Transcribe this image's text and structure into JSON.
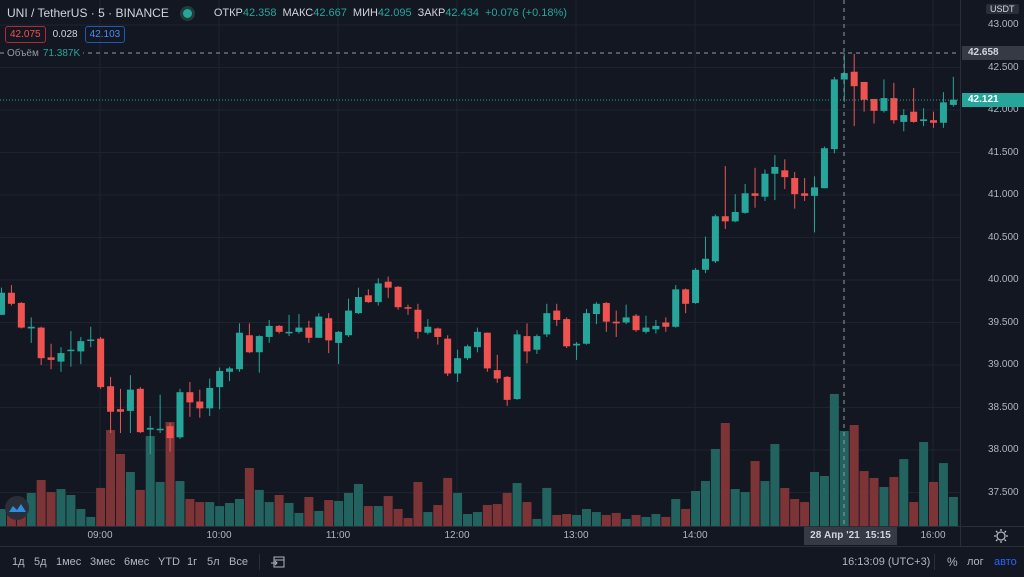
{
  "header": {
    "symbol": "UNI / TetherUS · 5 · BINANCE",
    "open_label": "ОТКР",
    "open": "42.358",
    "high_label": "МАКС",
    "high": "42.667",
    "low_label": "МИН",
    "low": "42.095",
    "close_label": "ЗАКР",
    "close": "42.434",
    "change": "+0.076 (+0.18%)",
    "sell_price": "42.075",
    "spread": "0.028",
    "buy_price": "42.103",
    "volume_label": "Объём",
    "volume": "71.387K"
  },
  "price_axis": {
    "currency": "USDT",
    "ticks": [
      "43.000",
      "42.500",
      "42.000",
      "41.500",
      "41.000",
      "40.500",
      "40.000",
      "39.500",
      "39.000",
      "38.500",
      "38.000",
      "37.500"
    ],
    "crosshair_price": "42.658",
    "current_price": "42.121"
  },
  "time_axis": {
    "ticks": [
      "09:00",
      "10:00",
      "11:00",
      "12:00",
      "13:00",
      "14:00",
      "16:00"
    ],
    "crosshair_date": "28 Апр '21",
    "crosshair_time": "15:15"
  },
  "bottom_bar": {
    "ranges": [
      "1д",
      "5д",
      "1мес",
      "3мес",
      "6мес",
      "YTD",
      "1г",
      "5л",
      "Все"
    ],
    "clock": "16:13:09 (UTC+3)",
    "percent": "%",
    "log": "лог",
    "auto": "авто"
  },
  "colors": {
    "up": "#26a69a",
    "down": "#ef5350",
    "vol_up": "#22625f",
    "vol_down": "#7d3436",
    "bg": "#131722"
  },
  "chart_data": {
    "type": "candlestick",
    "interval": "5m",
    "ylim": [
      37.2,
      43.3
    ],
    "ohlc": [
      [
        39.59,
        39.91,
        39.59,
        39.85
      ],
      [
        39.85,
        39.94,
        39.7,
        39.72
      ],
      [
        39.73,
        39.74,
        39.43,
        39.44
      ],
      [
        39.43,
        39.56,
        39.26,
        39.45
      ],
      [
        39.44,
        39.45,
        39.0,
        39.08
      ],
      [
        39.09,
        39.25,
        38.95,
        39.06
      ],
      [
        39.04,
        39.21,
        38.92,
        39.14
      ],
      [
        39.17,
        39.4,
        38.98,
        39.18
      ],
      [
        39.16,
        39.33,
        39.01,
        39.28
      ],
      [
        39.29,
        39.45,
        39.21,
        39.3
      ],
      [
        39.31,
        39.33,
        38.72,
        38.74
      ],
      [
        38.75,
        38.86,
        38.2,
        38.45
      ],
      [
        38.48,
        38.72,
        38.2,
        38.45
      ],
      [
        38.46,
        38.88,
        38.2,
        38.71
      ],
      [
        38.72,
        38.74,
        38.2,
        38.21
      ],
      [
        38.24,
        38.4,
        37.95,
        38.26
      ],
      [
        38.24,
        38.65,
        38.2,
        38.25
      ],
      [
        38.28,
        38.32,
        37.98,
        38.14
      ],
      [
        38.15,
        38.72,
        38.13,
        38.68
      ],
      [
        38.68,
        38.8,
        38.39,
        38.56
      ],
      [
        38.57,
        38.71,
        38.38,
        38.49
      ],
      [
        38.49,
        38.84,
        38.4,
        38.73
      ],
      [
        38.74,
        38.97,
        38.48,
        38.93
      ],
      [
        38.92,
        38.98,
        38.81,
        38.96
      ],
      [
        38.95,
        39.49,
        38.92,
        39.38
      ],
      [
        39.35,
        39.49,
        39.14,
        39.15
      ],
      [
        39.15,
        39.35,
        38.91,
        39.34
      ],
      [
        39.33,
        39.53,
        39.26,
        39.46
      ],
      [
        39.46,
        39.47,
        39.37,
        39.39
      ],
      [
        39.38,
        39.59,
        39.34,
        39.39
      ],
      [
        39.39,
        39.6,
        39.37,
        39.44
      ],
      [
        39.44,
        39.52,
        39.26,
        39.32
      ],
      [
        39.32,
        39.61,
        39.32,
        39.57
      ],
      [
        39.55,
        39.61,
        39.14,
        39.29
      ],
      [
        39.26,
        39.4,
        39.01,
        39.39
      ],
      [
        39.35,
        39.78,
        39.33,
        39.64
      ],
      [
        39.61,
        39.91,
        39.6,
        39.8
      ],
      [
        39.82,
        39.89,
        39.73,
        39.74
      ],
      [
        39.74,
        40.02,
        39.7,
        39.96
      ],
      [
        39.98,
        40.04,
        39.79,
        39.91
      ],
      [
        39.92,
        39.93,
        39.65,
        39.68
      ],
      [
        39.68,
        39.71,
        39.59,
        39.67
      ],
      [
        39.65,
        39.72,
        39.31,
        39.39
      ],
      [
        39.38,
        39.54,
        39.36,
        39.45
      ],
      [
        39.43,
        39.44,
        39.24,
        39.33
      ],
      [
        39.31,
        39.35,
        38.87,
        38.9
      ],
      [
        38.9,
        39.18,
        38.8,
        39.08
      ],
      [
        39.08,
        39.24,
        39.06,
        39.22
      ],
      [
        39.21,
        39.44,
        39.15,
        39.39
      ],
      [
        39.38,
        39.38,
        38.92,
        38.96
      ],
      [
        38.94,
        39.12,
        38.79,
        38.84
      ],
      [
        38.86,
        38.87,
        38.52,
        38.59
      ],
      [
        38.6,
        39.41,
        38.59,
        39.36
      ],
      [
        39.34,
        39.49,
        39.02,
        39.16
      ],
      [
        39.18,
        39.36,
        39.13,
        39.34
      ],
      [
        39.36,
        39.72,
        39.33,
        39.61
      ],
      [
        39.64,
        39.72,
        39.46,
        39.53
      ],
      [
        39.54,
        39.56,
        39.2,
        39.22
      ],
      [
        39.23,
        39.27,
        39.06,
        39.25
      ],
      [
        39.25,
        39.66,
        39.24,
        39.61
      ],
      [
        39.6,
        39.74,
        39.48,
        39.72
      ],
      [
        39.73,
        39.74,
        39.39,
        39.51
      ],
      [
        39.51,
        39.64,
        39.33,
        39.49
      ],
      [
        39.5,
        39.71,
        39.48,
        39.56
      ],
      [
        39.58,
        39.6,
        39.39,
        39.41
      ],
      [
        39.39,
        39.58,
        39.37,
        39.44
      ],
      [
        39.42,
        39.53,
        39.37,
        39.46
      ],
      [
        39.5,
        39.56,
        39.39,
        39.45
      ],
      [
        39.45,
        39.94,
        39.44,
        39.89
      ],
      [
        39.89,
        39.9,
        39.61,
        39.72
      ],
      [
        39.73,
        40.14,
        39.72,
        40.12
      ],
      [
        40.12,
        40.51,
        40.08,
        40.25
      ],
      [
        40.22,
        40.77,
        40.2,
        40.75
      ],
      [
        40.75,
        41.34,
        40.6,
        40.69
      ],
      [
        40.69,
        41.01,
        40.68,
        40.8
      ],
      [
        40.79,
        41.13,
        40.78,
        41.02
      ],
      [
        41.02,
        41.32,
        40.85,
        40.99
      ],
      [
        40.98,
        41.3,
        40.93,
        41.25
      ],
      [
        41.25,
        41.47,
        40.94,
        41.33
      ],
      [
        41.29,
        41.42,
        41.07,
        41.21
      ],
      [
        41.2,
        41.27,
        40.84,
        41.01
      ],
      [
        41.02,
        41.2,
        40.93,
        40.99
      ],
      [
        40.99,
        41.22,
        40.56,
        41.09
      ],
      [
        41.08,
        41.57,
        41.08,
        41.55
      ],
      [
        41.54,
        42.39,
        41.49,
        42.36
      ],
      [
        42.358,
        42.667,
        42.095,
        42.434
      ],
      [
        42.45,
        42.66,
        41.81,
        42.28
      ],
      [
        42.33,
        42.33,
        41.98,
        42.12
      ],
      [
        42.13,
        42.13,
        41.84,
        41.99
      ],
      [
        41.99,
        42.36,
        41.97,
        42.14
      ],
      [
        42.14,
        42.32,
        41.84,
        41.88
      ],
      [
        41.86,
        42.01,
        41.75,
        41.94
      ],
      [
        41.98,
        42.26,
        41.85,
        41.86
      ],
      [
        41.87,
        42.02,
        41.81,
        41.89
      ],
      [
        41.88,
        41.98,
        41.79,
        41.85
      ],
      [
        41.85,
        42.21,
        41.79,
        42.09
      ],
      [
        42.06,
        42.39,
        42.04,
        42.121
      ]
    ],
    "volume_k": [
      12.8,
      16.5,
      15.0,
      24.8,
      34.6,
      25.5,
      27.8,
      23.3,
      12.8,
      6.8,
      28.6,
      72.1,
      54.1,
      40.6,
      27.1,
      67.6,
      33.1,
      78.1,
      33.8,
      20.3,
      18.0,
      18.0,
      15.0,
      17.3,
      20.3,
      43.6,
      27.1,
      18.0,
      23.3,
      17.3,
      9.8,
      21.8,
      11.3,
      19.5,
      18.8,
      24.8,
      31.6,
      15.0,
      15.0,
      22.5,
      12.8,
      6.0,
      33.1,
      10.5,
      15.8,
      36.1,
      24.8,
      9.0,
      10.5,
      15.8,
      16.5,
      24.8,
      32.3,
      18.0,
      5.3,
      28.6,
      8.3,
      9.0,
      8.3,
      12.8,
      10.5,
      8.3,
      9.8,
      5.3,
      8.3,
      6.8,
      9.0,
      6.8,
      20.3,
      12.8,
      26.3,
      33.8,
      57.9,
      77.4,
      27.8,
      25.5,
      48.8,
      33.8,
      61.6,
      28.6,
      20.3,
      18.0,
      40.6,
      37.6,
      99.2,
      71.387,
      75.9,
      41.3,
      36.1,
      29.3,
      36.8,
      50.3,
      18.0,
      63.1,
      33.1,
      47.3,
      21.8
    ]
  }
}
